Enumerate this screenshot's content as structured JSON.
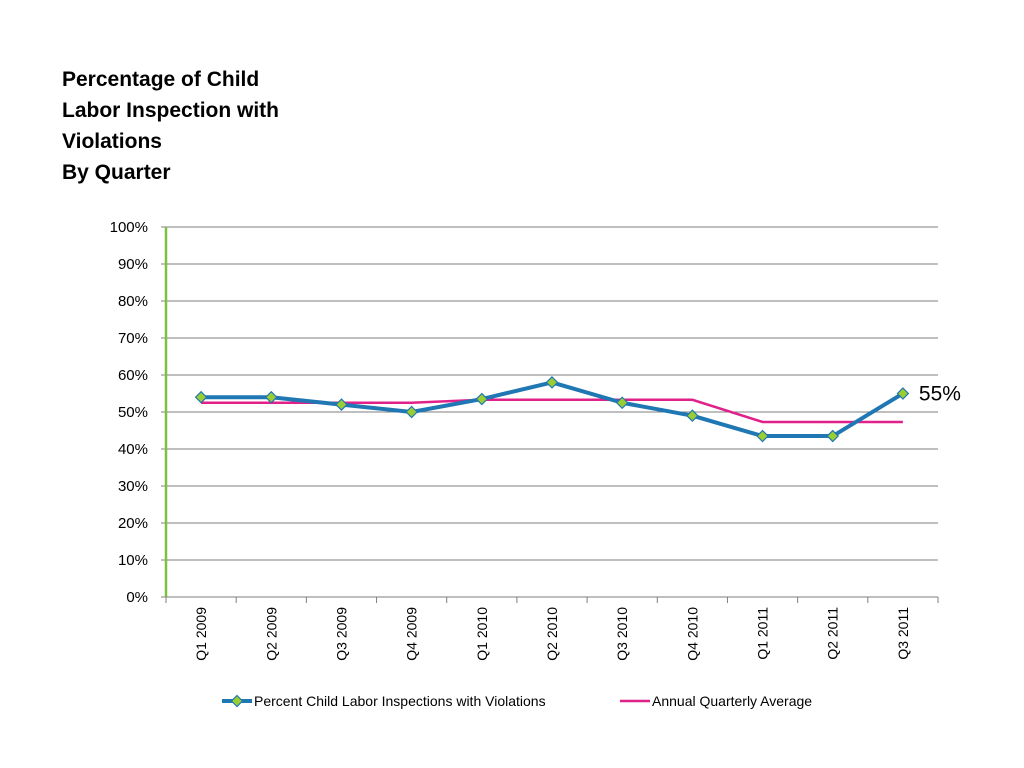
{
  "title_lines": [
    "Percentage of Child",
    "Labor Inspection with",
    "Violations",
    "By Quarter"
  ],
  "chart_data": {
    "type": "line",
    "categories": [
      "Q1 2009",
      "Q2 2009",
      "Q3 2009",
      "Q4 2009",
      "Q1 2010",
      "Q2 2010",
      "Q3 2010",
      "Q4 2010",
      "Q1 2011",
      "Q2 2011",
      "Q3 2011"
    ],
    "series": [
      {
        "name": "Percent Child Labor Inspections with Violations",
        "values": [
          54,
          54,
          52,
          50,
          53.5,
          58,
          52.5,
          49,
          43.5,
          43.5,
          55
        ],
        "color": "#1F77B4",
        "marker": "diamond",
        "marker_fill": "#9ACD32"
      },
      {
        "name": "Annual Quarterly Average",
        "values": [
          52.5,
          52.5,
          52.5,
          52.5,
          53.3,
          53.3,
          53.3,
          53.3,
          47.3,
          47.3,
          47.3
        ],
        "color": "#E0218A"
      }
    ],
    "ylim": [
      0,
      100
    ],
    "y_ticks": [
      "0%",
      "10%",
      "20%",
      "30%",
      "40%",
      "50%",
      "60%",
      "70%",
      "80%",
      "90%",
      "100%"
    ],
    "grid": true,
    "legend_position": "bottom",
    "annotation": "55%"
  }
}
